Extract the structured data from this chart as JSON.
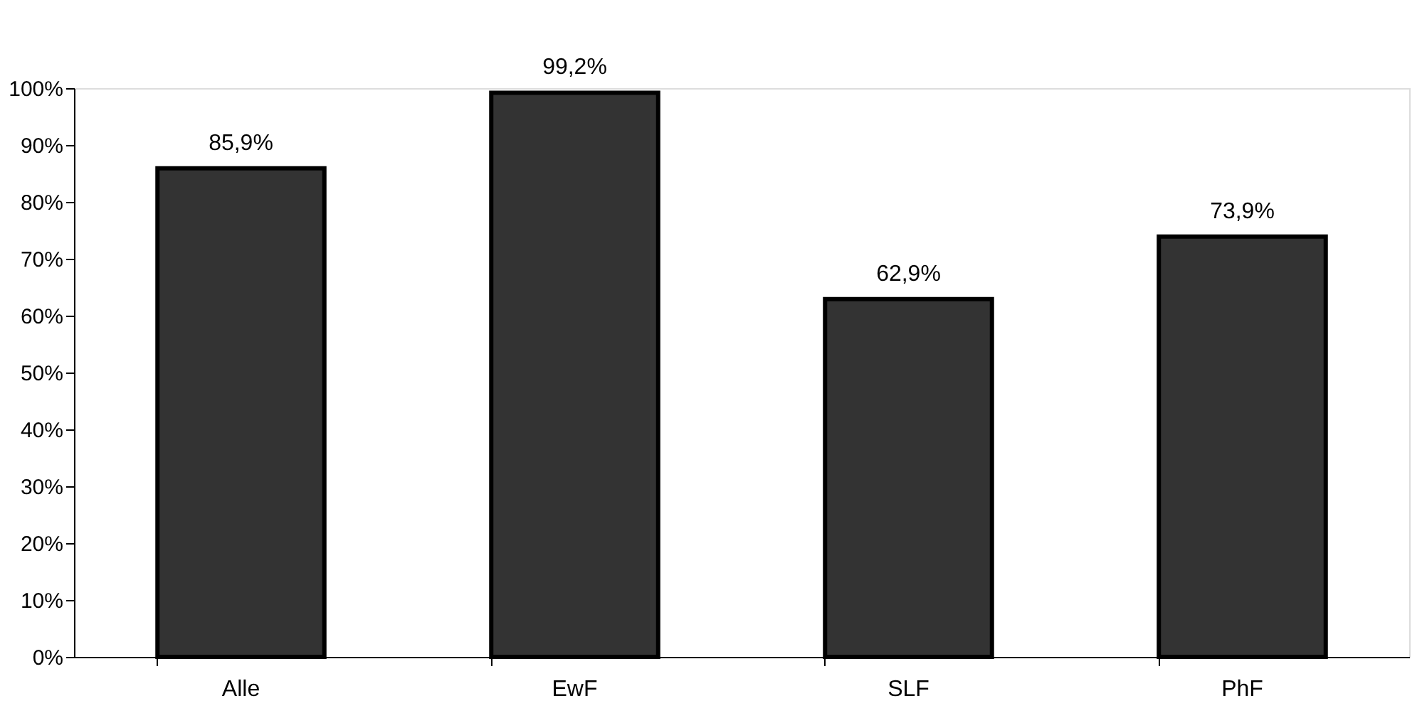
{
  "chart_data": {
    "type": "bar",
    "categories": [
      "Alle",
      "EwF",
      "SLF",
      "PhF"
    ],
    "values": [
      85.9,
      99.2,
      62.9,
      73.9
    ],
    "value_labels": [
      "85,9%",
      "99,2%",
      "62,9%",
      "73,9%"
    ],
    "color": "#333333",
    "ylim": [
      0,
      100
    ],
    "yticks": [
      {
        "value": 0,
        "label": "0%"
      },
      {
        "value": 10,
        "label": "10%"
      },
      {
        "value": 20,
        "label": "20%"
      },
      {
        "value": 30,
        "label": "30%"
      },
      {
        "value": 40,
        "label": "40%"
      },
      {
        "value": 50,
        "label": "50%"
      },
      {
        "value": 60,
        "label": "60%"
      },
      {
        "value": 70,
        "label": "70%"
      },
      {
        "value": 80,
        "label": "80%"
      },
      {
        "value": 90,
        "label": "90%"
      },
      {
        "value": 100,
        "label": "100%"
      }
    ],
    "grid": false
  }
}
